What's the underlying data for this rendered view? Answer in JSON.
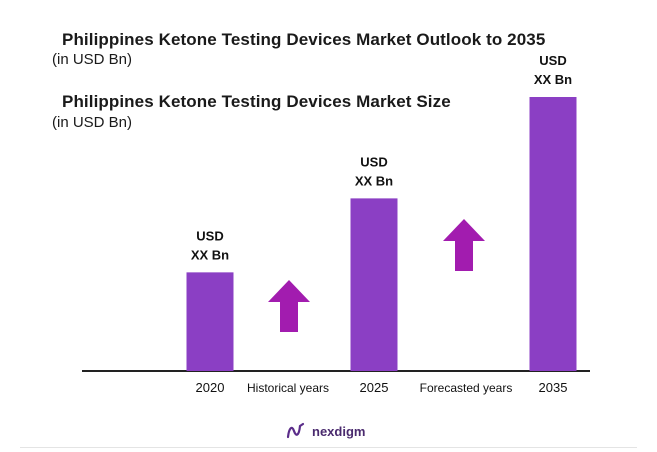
{
  "header": {
    "title_1": "Philippines Ketone Testing Devices  Market Outlook to 2035",
    "subtitle_1": "(in USD Bn)",
    "title_2": "Philippines Ketone Testing Devices  Market Size",
    "subtitle_2": "(in USD Bn)"
  },
  "chart_data": {
    "type": "bar",
    "categories": [
      "2020",
      "2025",
      "2035"
    ],
    "values": [
      36,
      63,
      100
    ],
    "value_labels": [
      [
        "USD",
        "XX Bn"
      ],
      [
        "USD",
        "XX Bn"
      ],
      [
        "USD",
        "XX Bn"
      ]
    ],
    "period_labels": [
      "Historical years",
      "Forecasted years"
    ],
    "ylim": [
      0,
      100
    ],
    "grid": false,
    "colors": {
      "bar": "#8b3fc4",
      "arrow": "#a21caf",
      "axis": "#222222"
    }
  },
  "footer": {
    "brand": "nexdigm",
    "logo_icon": "nexdigm-logo-icon"
  }
}
